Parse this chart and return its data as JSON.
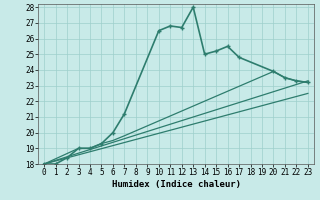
{
  "title": "",
  "xlabel": "Humidex (Indice chaleur)",
  "bg_color": "#c8eae8",
  "line_color": "#2e7d6e",
  "xlim": [
    -0.5,
    23.5
  ],
  "ylim": [
    18,
    28.2
  ],
  "yticks": [
    18,
    19,
    20,
    21,
    22,
    23,
    24,
    25,
    26,
    27,
    28
  ],
  "xticks": [
    0,
    1,
    2,
    3,
    4,
    5,
    6,
    7,
    8,
    9,
    10,
    11,
    12,
    13,
    14,
    15,
    16,
    17,
    18,
    19,
    20,
    21,
    22,
    23
  ],
  "line1_x": [
    0,
    1,
    2,
    3,
    4,
    5,
    6,
    7,
    10,
    11,
    12,
    13,
    14,
    15,
    16,
    17,
    20,
    21,
    22,
    23
  ],
  "line1_y": [
    18,
    18,
    18.4,
    19.0,
    19.0,
    19.3,
    20.0,
    21.2,
    26.5,
    26.8,
    26.7,
    28.0,
    25.0,
    25.2,
    25.5,
    24.8,
    23.9,
    23.5,
    23.3,
    23.2
  ],
  "line2_x": [
    0,
    3,
    4,
    5,
    6,
    7,
    20,
    21,
    22,
    23
  ],
  "line2_y": [
    18,
    19.0,
    19.0,
    19.3,
    19.5,
    19.8,
    23.9,
    23.5,
    23.3,
    23.2
  ],
  "line3_x": [
    0,
    23
  ],
  "line3_y": [
    18,
    23.3
  ],
  "line4_x": [
    0,
    23
  ],
  "line4_y": [
    18,
    22.5
  ]
}
